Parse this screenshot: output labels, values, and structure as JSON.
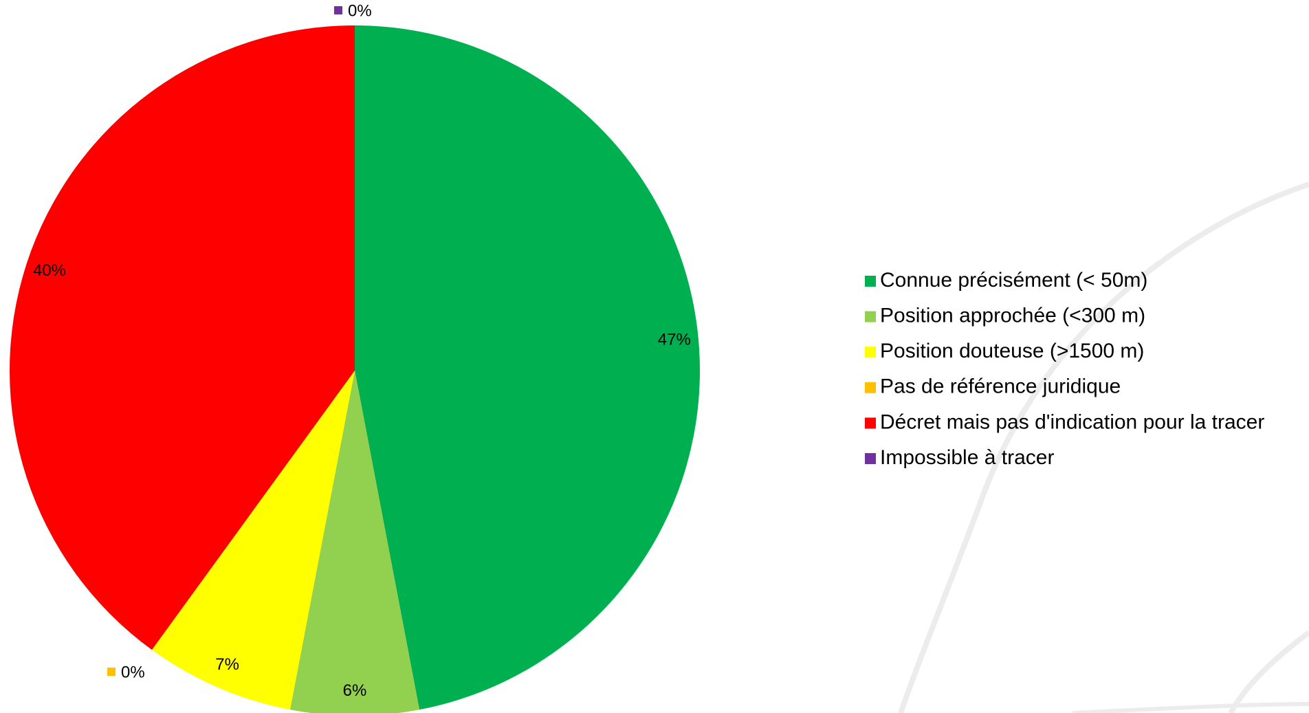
{
  "chart_data": {
    "type": "pie",
    "unit": "%",
    "legend_position": "right",
    "start_angle_deg": 0,
    "direction": "clockwise",
    "slices": [
      {
        "name": "Connue précisément (<  50m)",
        "value": 47,
        "label": "47%",
        "color": "#00B050"
      },
      {
        "name": "Position approchée (<300 m)",
        "value": 6,
        "label": "6%",
        "color": "#92D050"
      },
      {
        "name": "Position douteuse (>1500 m)",
        "value": 7,
        "label": "7%",
        "color": "#FFFF00"
      },
      {
        "name": "Pas de référence juridique",
        "value": 0,
        "label": "0%",
        "color": "#FFC000"
      },
      {
        "name": "Décret mais pas d'indication pour la tracer",
        "value": 40,
        "label": "40%",
        "color": "#FF0000"
      },
      {
        "name": "Impossible à tracer",
        "value": 0,
        "label": "0%",
        "color": "#7030A0"
      }
    ]
  }
}
